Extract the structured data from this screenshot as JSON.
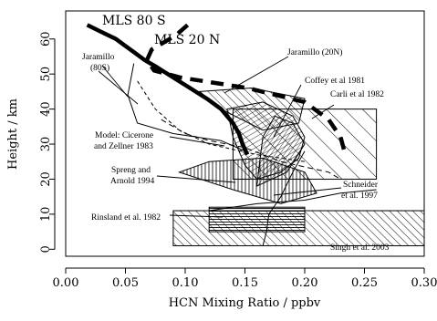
{
  "chart_data": {
    "type": "line",
    "xlabel": "HCN Mixing Ratio / ppbv",
    "ylabel": "Height / km",
    "xlim": [
      0.0,
      0.3
    ],
    "ylim": [
      -2,
      68
    ],
    "x_ticks": [
      "0.00",
      "0.05",
      "0.10",
      "0.15",
      "0.20",
      "0.25",
      "0.30"
    ],
    "x_tick_values": [
      0,
      0.05,
      0.1,
      0.15,
      0.2,
      0.25,
      0.3
    ],
    "y_ticks": [
      "0",
      "10",
      "20",
      "30",
      "40",
      "50",
      "60"
    ],
    "y_tick_values": [
      0,
      10,
      20,
      30,
      40,
      50,
      60
    ],
    "grid": false,
    "series": [
      {
        "name": "MLS 80 S",
        "style": "thick-solid",
        "x": [
          0.018,
          0.03,
          0.042,
          0.05,
          0.058,
          0.066,
          0.076,
          0.09,
          0.104,
          0.118,
          0.13,
          0.14,
          0.145,
          0.148,
          0.152
        ],
        "y": [
          64,
          62,
          60,
          58,
          56,
          54,
          52,
          49,
          46,
          43,
          40,
          36,
          33,
          30,
          27
        ]
      },
      {
        "name": "MLS 20 N",
        "style": "thick-dashed",
        "x": [
          0.102,
          0.092,
          0.072,
          0.068,
          0.074,
          0.096,
          0.152,
          0.2,
          0.22,
          0.23,
          0.234
        ],
        "y": [
          64,
          61,
          57,
          54,
          51,
          49,
          46,
          42,
          37,
          32,
          27
        ]
      }
    ],
    "regions": [
      {
        "label": "Carli et al 1982",
        "x": [
          0.14,
          0.26
        ],
        "y": [
          20,
          40
        ]
      },
      {
        "label": "Rinsland et al. 1982",
        "x": [
          0.12,
          0.2
        ],
        "y": [
          5,
          12
        ]
      },
      {
        "label": "Singh et al. 2003",
        "x": [
          0.09,
          0.3
        ],
        "y": [
          1,
          11
        ]
      }
    ],
    "annotations": [
      {
        "text": "Jaramillo (80S)"
      },
      {
        "text": "Jaramillo (20N)"
      },
      {
        "text": "Coffey et al 1981"
      },
      {
        "text": "Carli et al 1982"
      },
      {
        "text": "Model: Cicerone and Zellner 1983"
      },
      {
        "text": "Spreng and Arnold 1994"
      },
      {
        "text": "Schneider et al. 1997"
      },
      {
        "text": "Rinsland et al. 1982"
      },
      {
        "text": "Singh et al. 2003"
      }
    ]
  },
  "labels": {
    "mls80s": "MLS 80 S",
    "mls20n": "MLS 20 N",
    "jaramillo80s_1": "Jaramillo",
    "jaramillo80s_2": "(80S)",
    "jaramillo20n": "Jaramillo (20N)",
    "coffey": "Coffey et al 1981",
    "carli": "Carli et al 1982",
    "cicerone_1": "Model: Cicerone",
    "cicerone_2": "and Zellner 1983",
    "spreng_1": "Spreng and",
    "spreng_2": "Arnold 1994",
    "schneider_1": "Schneider",
    "schneider_2": "et al. 1997",
    "rinsland": "Rinsland et al. 1982",
    "singh": "Singh et al. 2003"
  }
}
